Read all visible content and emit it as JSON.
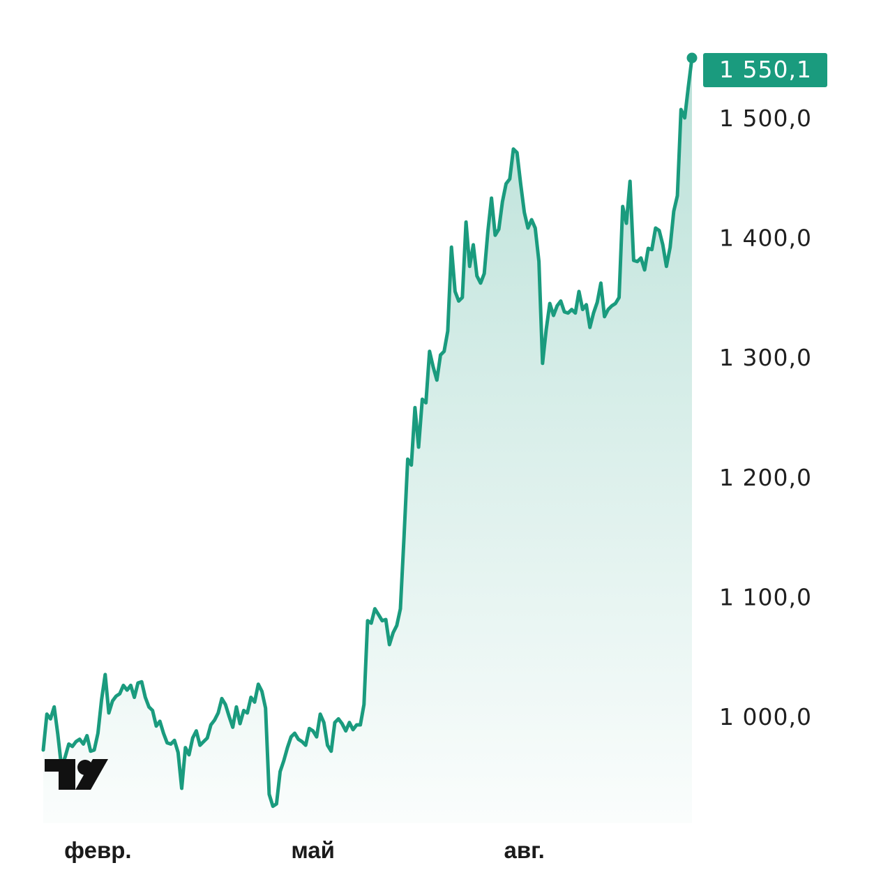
{
  "chart_data": {
    "type": "area",
    "title": "",
    "xlabel": "",
    "ylabel": "",
    "ylim": [
      918,
      1580
    ],
    "grid": false,
    "legend": "none",
    "colors": {
      "line": "#1a9b7e",
      "fill_top": "#1a9b7e",
      "badge": "#1a9b7e",
      "text": "#1f1f1f"
    },
    "y_ticks": [
      "1 000,0",
      "1 100,0",
      "1 200,0",
      "1 300,0",
      "1 400,0",
      "1 500,0"
    ],
    "y_tick_values": [
      1000,
      1100,
      1200,
      1300,
      1400,
      1500
    ],
    "x_ticks": [
      "февр.",
      "май",
      "авг."
    ],
    "x_tick_index": [
      15,
      74,
      132
    ],
    "last_value_label": "1 550,1",
    "last_value": 1550.1,
    "logo": "tradingview-logo",
    "series": [
      {
        "values": [
          972,
          1002,
          998,
          1008,
          985,
          958,
          966,
          977,
          975,
          979,
          981,
          977,
          984,
          971,
          972,
          986,
          1014,
          1035,
          1003,
          1013,
          1017,
          1019,
          1026,
          1022,
          1026,
          1016,
          1028,
          1029,
          1016,
          1008,
          1005,
          992,
          996,
          986,
          978,
          977,
          980,
          970,
          940,
          974,
          968,
          982,
          988,
          976,
          979,
          982,
          993,
          997,
          1003,
          1015,
          1010,
          1000,
          991,
          1008,
          994,
          1005,
          1003,
          1016,
          1012,
          1027,
          1021,
          1007,
          935,
          925,
          927,
          954,
          963,
          974,
          983,
          986,
          981,
          979,
          976,
          990,
          988,
          983,
          1002,
          995,
          976,
          971,
          995,
          998,
          994,
          988,
          995,
          989,
          993,
          993,
          1010,
          1080,
          1078,
          1090,
          1085,
          1080,
          1081,
          1060,
          1070,
          1076,
          1090,
          1150,
          1215,
          1210,
          1258,
          1225,
          1265,
          1262,
          1305,
          1292,
          1281,
          1302,
          1305,
          1322,
          1392,
          1355,
          1347,
          1350,
          1413,
          1376,
          1394,
          1368,
          1362,
          1370,
          1405,
          1433,
          1402,
          1407,
          1430,
          1445,
          1449,
          1474,
          1471,
          1445,
          1421,
          1408,
          1415,
          1408,
          1380,
          1295,
          1323,
          1345,
          1335,
          1343,
          1347,
          1338,
          1337,
          1340,
          1337,
          1355,
          1340,
          1344,
          1325,
          1337,
          1346,
          1362,
          1334,
          1340,
          1343,
          1345,
          1350,
          1426,
          1412,
          1447,
          1381,
          1380,
          1383,
          1373,
          1391,
          1390,
          1408,
          1406,
          1394,
          1376,
          1392,
          1422,
          1435,
          1507,
          1500,
          1526,
          1550.1
        ]
      }
    ]
  }
}
